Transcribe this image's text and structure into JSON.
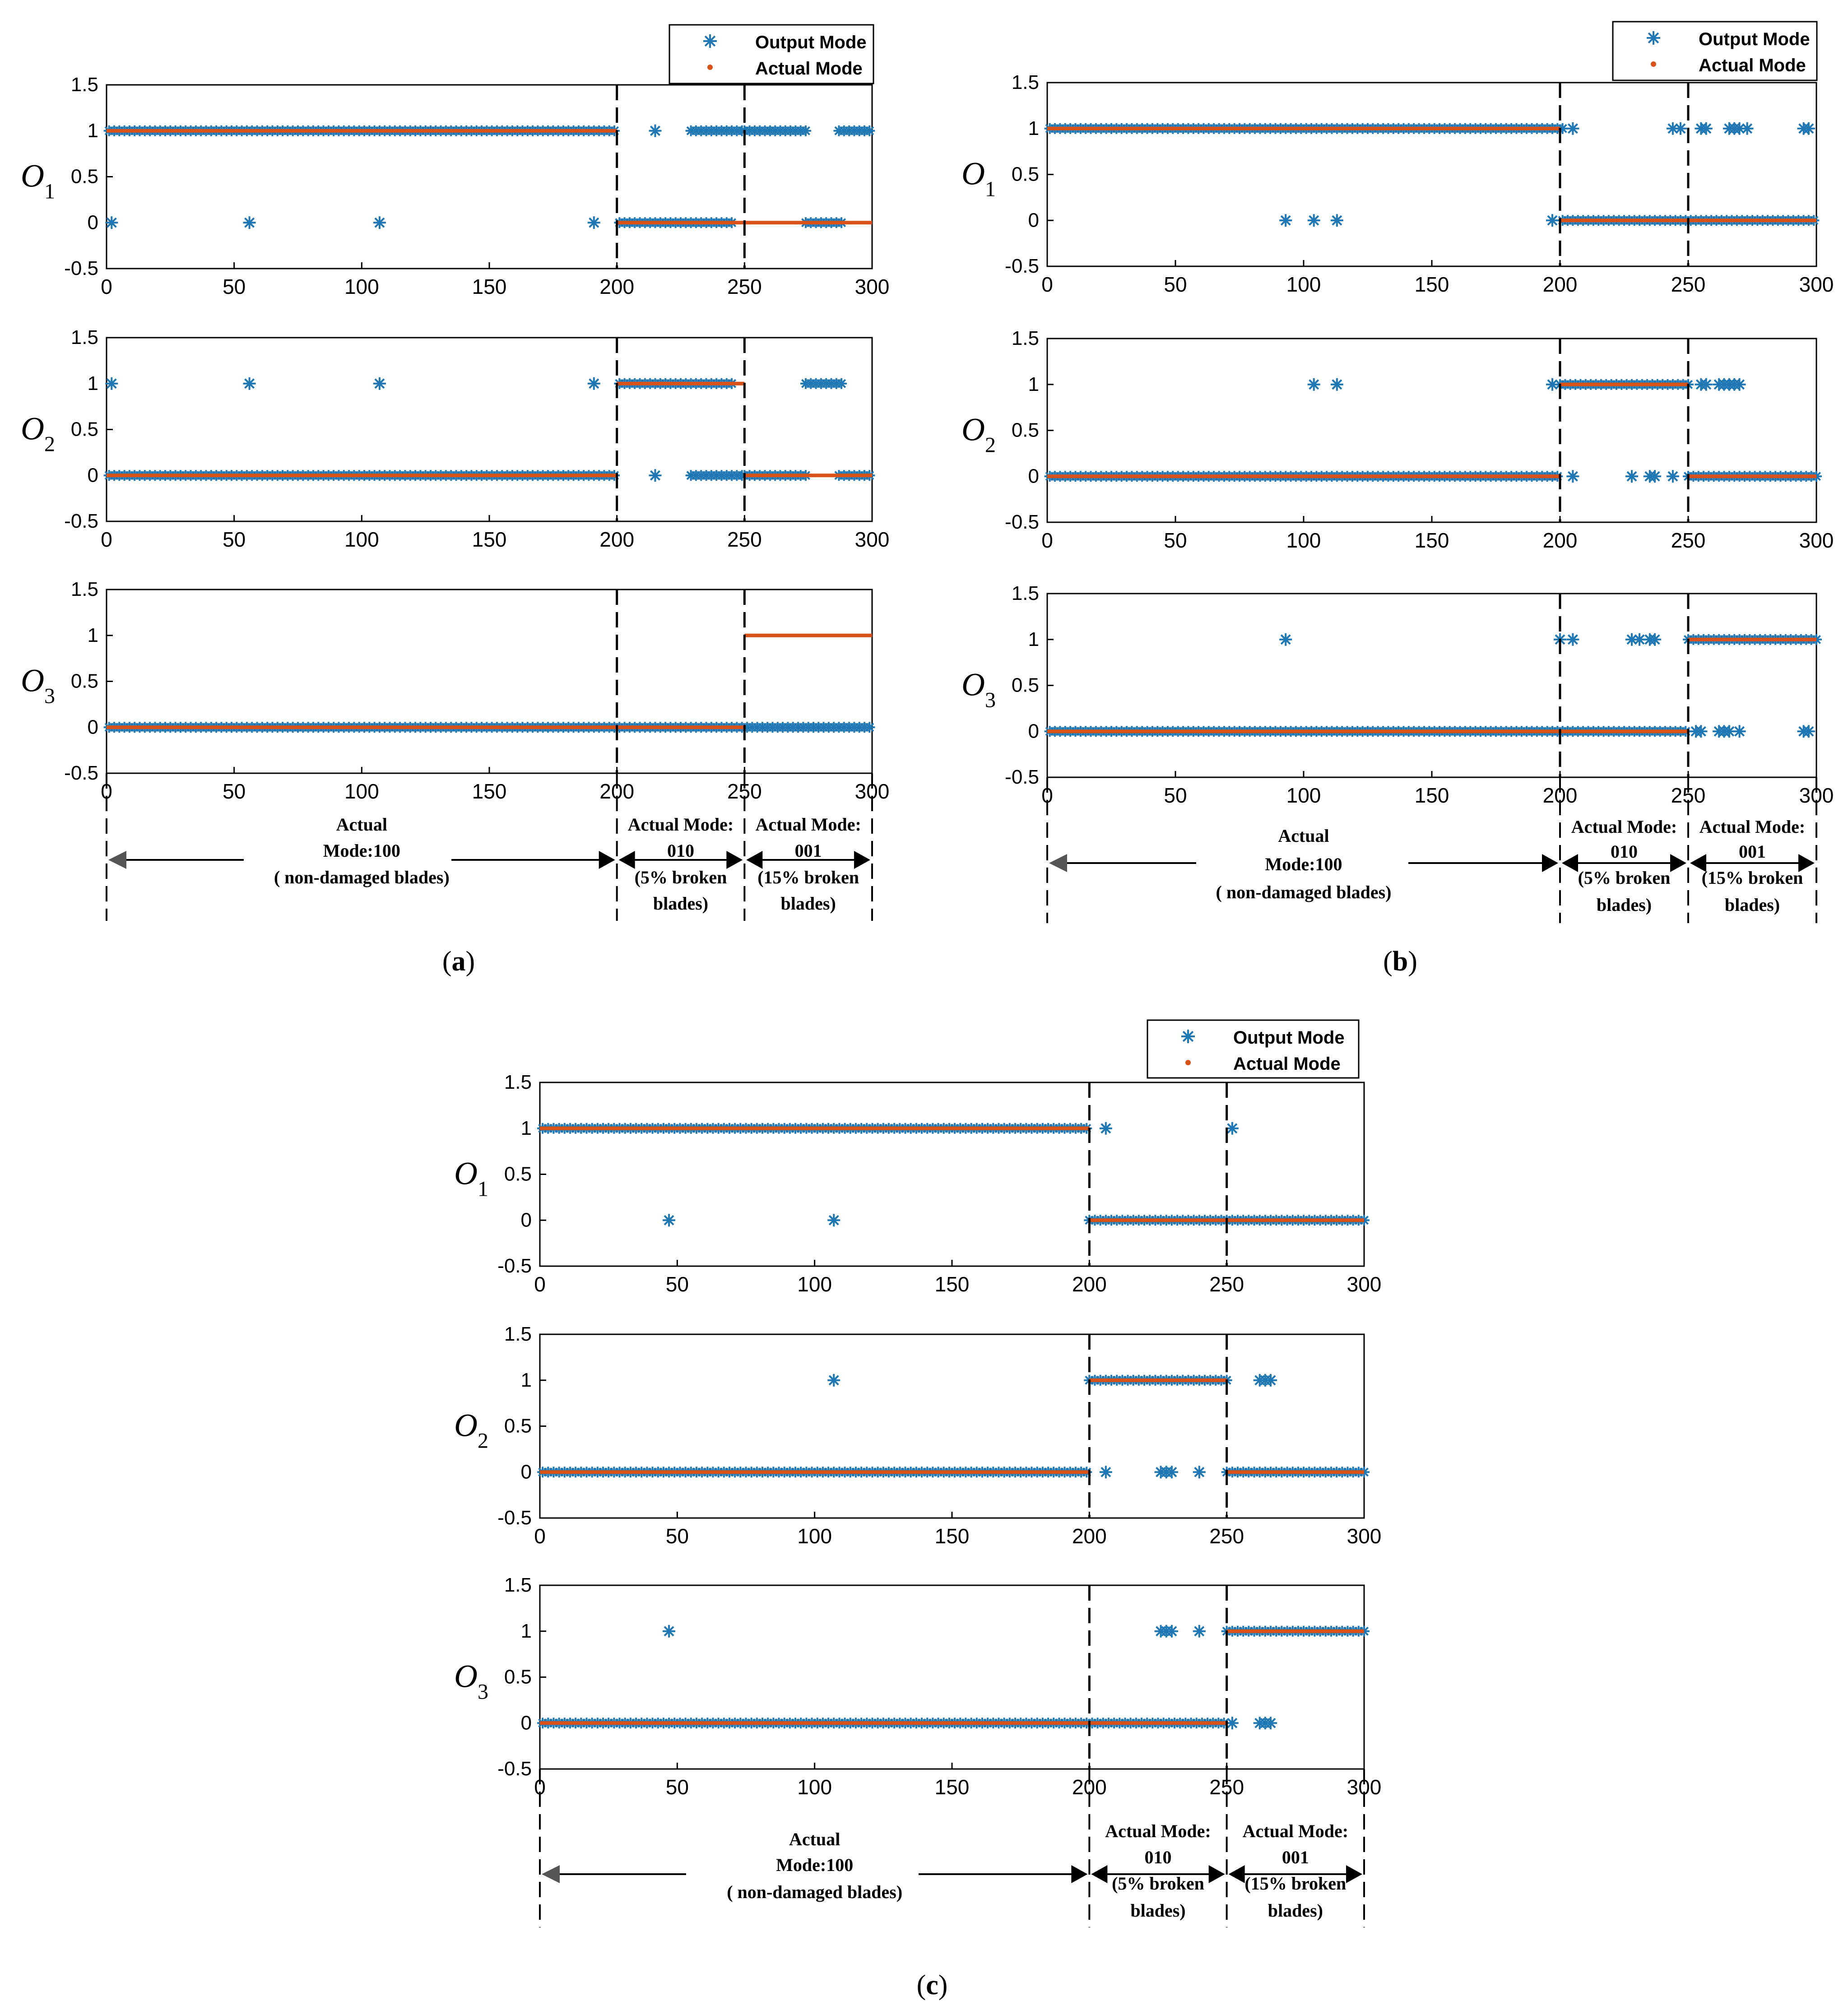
{
  "figure": {
    "legend": {
      "output_label": "Output Mode",
      "actual_label": "Actual Mode"
    },
    "colors": {
      "output": "#1f77b4",
      "actual": "#d95319",
      "axis": "#000000"
    },
    "y_axis_labels": [
      "O",
      "O",
      "O"
    ],
    "y_axis_subscripts": [
      "1",
      "2",
      "3"
    ],
    "segments": [
      {
        "line1": "Actual",
        "line2": "Mode:100",
        "line3": "( non-damaged blades)"
      },
      {
        "line1": "Actual  Mode:",
        "line2": "010",
        "line3": "(5% broken",
        "line4": "blades)"
      },
      {
        "line1": "Actual  Mode:",
        "line2": "001",
        "line3": "(15% broken",
        "line4": "blades)"
      }
    ]
  },
  "chart_data": [
    {
      "panel": "(a)",
      "type": "scatter",
      "xlim": [
        0,
        300
      ],
      "ylim": [
        -0.5,
        1.5
      ],
      "xticks": [
        0,
        50,
        100,
        150,
        200,
        250,
        300
      ],
      "yticks": [
        1.5,
        1,
        0.5,
        0,
        -0.5
      ],
      "boundaries": [
        200,
        250
      ],
      "subplots": [
        {
          "ylabel": "O1",
          "actual": [
            [
              0,
              200,
              1
            ],
            [
              200,
              300,
              0
            ]
          ],
          "output_dense": [
            [
              1,
              200,
              1
            ],
            [
              201,
              230,
              0
            ],
            [
              229,
              250,
              1
            ],
            [
              231,
              246,
              0
            ],
            [
              250,
              275,
              1
            ],
            [
              274,
              288,
              0
            ],
            [
              287,
              300,
              1
            ]
          ],
          "output_points": [
            [
              2,
              0
            ],
            [
              56,
              0
            ],
            [
              107,
              0
            ],
            [
              191,
              0
            ],
            [
              215,
              1
            ]
          ]
        },
        {
          "ylabel": "O2",
          "actual": [
            [
              0,
              200,
              0
            ],
            [
              200,
              250,
              1
            ],
            [
              250,
              300,
              0
            ]
          ],
          "output_dense": [
            [
              1,
              200,
              0
            ],
            [
              201,
              230,
              1
            ],
            [
              229,
              250,
              0
            ],
            [
              231,
              246,
              1
            ],
            [
              250,
              275,
              0
            ],
            [
              274,
              288,
              1
            ],
            [
              287,
              300,
              0
            ]
          ],
          "output_points": [
            [
              2,
              1
            ],
            [
              56,
              1
            ],
            [
              107,
              1
            ],
            [
              191,
              1
            ],
            [
              215,
              0
            ]
          ]
        },
        {
          "ylabel": "O3",
          "actual": [
            [
              0,
              250,
              0
            ],
            [
              250,
              300,
              1
            ]
          ],
          "output_dense": [
            [
              1,
              300,
              0
            ]
          ],
          "output_points": []
        }
      ]
    },
    {
      "panel": "(b)",
      "type": "scatter",
      "xlim": [
        0,
        300
      ],
      "ylim": [
        -0.5,
        1.5
      ],
      "xticks": [
        0,
        50,
        100,
        150,
        200,
        250,
        300
      ],
      "yticks": [
        1.5,
        1,
        0.5,
        0,
        -0.5
      ],
      "boundaries": [
        200,
        250
      ],
      "subplots": [
        {
          "ylabel": "O1",
          "actual": [
            [
              0,
              200,
              1
            ],
            [
              200,
              300,
              0
            ]
          ],
          "output_dense": [
            [
              1,
              201,
              1
            ],
            [
              201,
              300,
              0
            ]
          ],
          "output_points": [
            [
              93,
              0
            ],
            [
              104,
              0
            ],
            [
              113,
              0
            ],
            [
              197,
              0
            ],
            [
              205,
              1
            ],
            [
              244,
              1
            ],
            [
              247,
              1
            ],
            [
              255,
              1
            ],
            [
              257,
              1
            ],
            [
              266,
              1
            ],
            [
              268,
              1
            ],
            [
              270,
              1
            ],
            [
              273,
              1
            ],
            [
              295,
              1
            ],
            [
              297,
              1
            ]
          ]
        },
        {
          "ylabel": "O2",
          "actual": [
            [
              0,
              200,
              0
            ],
            [
              200,
              250,
              1
            ],
            [
              250,
              300,
              0
            ]
          ],
          "output_dense": [
            [
              1,
              200,
              0
            ],
            [
              200,
              250,
              1
            ],
            [
              250,
              300,
              0
            ]
          ],
          "output_points": [
            [
              104,
              1
            ],
            [
              113,
              1
            ],
            [
              197,
              1
            ],
            [
              255,
              1
            ],
            [
              257,
              1
            ],
            [
              262,
              1
            ],
            [
              264,
              1
            ],
            [
              266,
              1
            ],
            [
              268,
              1
            ],
            [
              270,
              1
            ],
            [
              205,
              0
            ],
            [
              228,
              0
            ],
            [
              235,
              0
            ],
            [
              237,
              0
            ],
            [
              244,
              0
            ]
          ]
        },
        {
          "ylabel": "O3",
          "actual": [
            [
              0,
              250,
              0
            ],
            [
              250,
              300,
              1
            ]
          ],
          "output_dense": [
            [
              1,
              250,
              0
            ],
            [
              250,
              300,
              1
            ]
          ],
          "output_points": [
            [
              93,
              1
            ],
            [
              200,
              1
            ],
            [
              205,
              1
            ],
            [
              228,
              1
            ],
            [
              231,
              1
            ],
            [
              235,
              1
            ],
            [
              237,
              1
            ],
            [
              253,
              0
            ],
            [
              255,
              0
            ],
            [
              262,
              0
            ],
            [
              264,
              0
            ],
            [
              266,
              0
            ],
            [
              270,
              0
            ],
            [
              295,
              0
            ],
            [
              297,
              0
            ]
          ]
        }
      ]
    },
    {
      "panel": "(c)",
      "type": "scatter",
      "xlim": [
        0,
        300
      ],
      "ylim": [
        -0.5,
        1.5
      ],
      "xticks": [
        0,
        50,
        100,
        150,
        200,
        250,
        300
      ],
      "yticks": [
        1.5,
        1,
        0.5,
        0,
        -0.5
      ],
      "boundaries": [
        200,
        250
      ],
      "subplots": [
        {
          "ylabel": "O1",
          "actual": [
            [
              0,
              200,
              1
            ],
            [
              200,
              300,
              0
            ]
          ],
          "output_dense": [
            [
              1,
              200,
              1
            ],
            [
              200,
              300,
              0
            ]
          ],
          "output_points": [
            [
              47,
              0
            ],
            [
              107,
              0
            ],
            [
              206,
              1
            ],
            [
              252,
              1
            ]
          ]
        },
        {
          "ylabel": "O2",
          "actual": [
            [
              0,
              200,
              0
            ],
            [
              200,
              250,
              1
            ],
            [
              250,
              300,
              0
            ]
          ],
          "output_dense": [
            [
              1,
              200,
              0
            ],
            [
              200,
              250,
              1
            ],
            [
              250,
              300,
              0
            ]
          ],
          "output_points": [
            [
              107,
              1
            ],
            [
              206,
              0
            ],
            [
              226,
              0
            ],
            [
              228,
              0
            ],
            [
              230,
              0
            ],
            [
              240,
              0
            ],
            [
              262,
              1
            ],
            [
              264,
              1
            ],
            [
              266,
              1
            ]
          ]
        },
        {
          "ylabel": "O3",
          "actual": [
            [
              0,
              250,
              0
            ],
            [
              250,
              300,
              1
            ]
          ],
          "output_dense": [
            [
              1,
              250,
              0
            ],
            [
              250,
              300,
              1
            ]
          ],
          "output_points": [
            [
              47,
              1
            ],
            [
              226,
              1
            ],
            [
              228,
              1
            ],
            [
              230,
              1
            ],
            [
              240,
              1
            ],
            [
              252,
              0
            ],
            [
              262,
              0
            ],
            [
              264,
              0
            ],
            [
              266,
              0
            ]
          ]
        }
      ]
    }
  ]
}
